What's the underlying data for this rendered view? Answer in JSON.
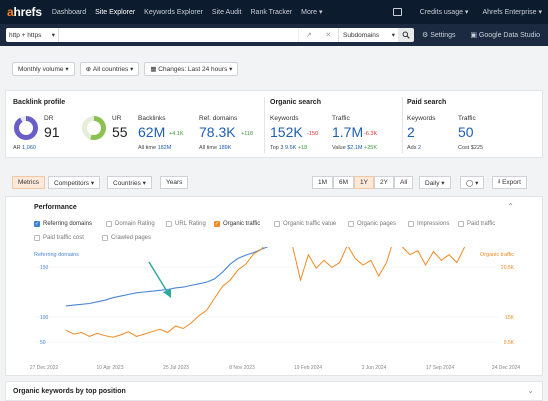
{
  "nav": {
    "logo_a": "a",
    "logo_b": "hrefs",
    "items": [
      "Dashboard",
      "Site Explorer",
      "Keywords Explorer",
      "Site Audit",
      "Rank Tracker",
      "More ▾"
    ],
    "credits": "Credits usage ▾",
    "account": "Ahrefs Enterprise ▾"
  },
  "search": {
    "protocol": "http + https",
    "mode": "Subdomains",
    "settings": "Settings",
    "gds": "Google Data Studio"
  },
  "filters": [
    "Monthly volume ▾",
    "All countries ▾",
    "Changes: Last 24 hours ▾"
  ],
  "backlink": {
    "title": "Backlink profile",
    "dr_label": "DR",
    "dr_value": "91",
    "ar_label": "AR",
    "ar_value": "1,060",
    "ur_label": "UR",
    "ur_value": "55",
    "backlinks_label": "Backlinks",
    "backlinks_value": "62M",
    "backlinks_delta": "+4.1K",
    "backlinks_alltime_label": "All time",
    "backlinks_alltime": "182M",
    "refdomains_label": "Ref. domains",
    "refdomains_value": "78.3K",
    "refdomains_delta": "+118",
    "refdomains_alltime_label": "All time",
    "refdomains_alltime": "189K"
  },
  "organic": {
    "title": "Organic search",
    "kw_label": "Keywords",
    "kw_value": "152K",
    "kw_delta": "-150",
    "traffic_label": "Traffic",
    "traffic_value": "1.7M",
    "traffic_delta": "-6.3K",
    "top3_label": "Top 3",
    "top3_value": "9.6K",
    "top3_delta": "+18",
    "value_label": "Value",
    "value_value": "$2.1M",
    "value_delta": "+25K"
  },
  "paid": {
    "title": "Paid search",
    "kw_label": "Keywords",
    "kw_value": "2",
    "traffic_label": "Traffic",
    "traffic_value": "50",
    "ads_label": "Ads",
    "ads_value": "2",
    "cost_label": "Cost",
    "cost_value": "$225"
  },
  "toolbar": {
    "tabs": [
      "Metrics",
      "Competitors ▾",
      "Countries ▾",
      "Years"
    ],
    "ranges": [
      "1M",
      "6M",
      "1Y",
      "2Y",
      "All"
    ],
    "interval": "Daily ▾",
    "comment": "▾",
    "export": "Export"
  },
  "performance": {
    "title": "Performance",
    "checks": [
      {
        "label": "Referring domains",
        "state": "blue"
      },
      {
        "label": "Domain Rating",
        "state": "off"
      },
      {
        "label": "URL Rating",
        "state": "off"
      },
      {
        "label": "Organic traffic",
        "state": "orange"
      },
      {
        "label": "Organic traffic value",
        "state": "off"
      },
      {
        "label": "Organic pages",
        "state": "off"
      },
      {
        "label": "Impressions",
        "state": "off"
      },
      {
        "label": "Paid traffic",
        "state": "off"
      },
      {
        "label": "Paid traffic cost",
        "state": "off"
      },
      {
        "label": "Crawled pages",
        "state": "off"
      }
    ]
  },
  "chart_data": {
    "type": "line",
    "left_axis_label": "Referring domains",
    "right_axis_label": "Organic traffic",
    "left_ticks": [
      "200",
      "150",
      "100",
      "50"
    ],
    "right_ticks": [
      "25K",
      "20.5K",
      "15K",
      "9.5K"
    ],
    "x_ticks": [
      "27 Dec 2022",
      "10 Apr 2023",
      "25 Jul 2023",
      "8 Nov 2023",
      "19 Feb 2024",
      "3 Jun 2024",
      "17 Sep 2024",
      "24 Dec 2024"
    ],
    "ylim_left": [
      0,
      225
    ],
    "ylim_right": [
      5500,
      28000
    ],
    "colors": {
      "referring_domains": "#4a86d6",
      "organic_traffic": "#f08a24",
      "arrow": "#2aa89a"
    },
    "series": [
      {
        "name": "Referring domains",
        "values": [
          94,
          95,
          96,
          97,
          99,
          101,
          104,
          106,
          108,
          110,
          111,
          112,
          113,
          114,
          116,
          117,
          119,
          121,
          123,
          127,
          135,
          145,
          152,
          156,
          159,
          163,
          167,
          173,
          180,
          186,
          190,
          193,
          194,
          196,
          197,
          198,
          198,
          199,
          200,
          201,
          202,
          203,
          204,
          205,
          206,
          208,
          209,
          210,
          210,
          209,
          210,
          208,
          207,
          206,
          210,
          208
        ]
      },
      {
        "name": "Organic traffic",
        "values": [
          11000,
          10500,
          10700,
          10200,
          10600,
          10300,
          10100,
          10400,
          10800,
          10200,
          10500,
          10800,
          11100,
          10700,
          11500,
          11200,
          11900,
          12800,
          13500,
          15000,
          16500,
          17300,
          18600,
          19300,
          20600,
          21200,
          22500,
          22000,
          21900,
          21500,
          17300,
          20500,
          18800,
          19800,
          18900,
          19500,
          21700,
          20000,
          19200,
          19800,
          17800,
          19500,
          22700,
          21500,
          20500,
          21000,
          19200,
          20900,
          19800,
          20500,
          19500,
          21500,
          22500,
          24000,
          27000,
          26000
        ]
      }
    ]
  },
  "bottom": {
    "title": "Organic keywords by top position"
  }
}
